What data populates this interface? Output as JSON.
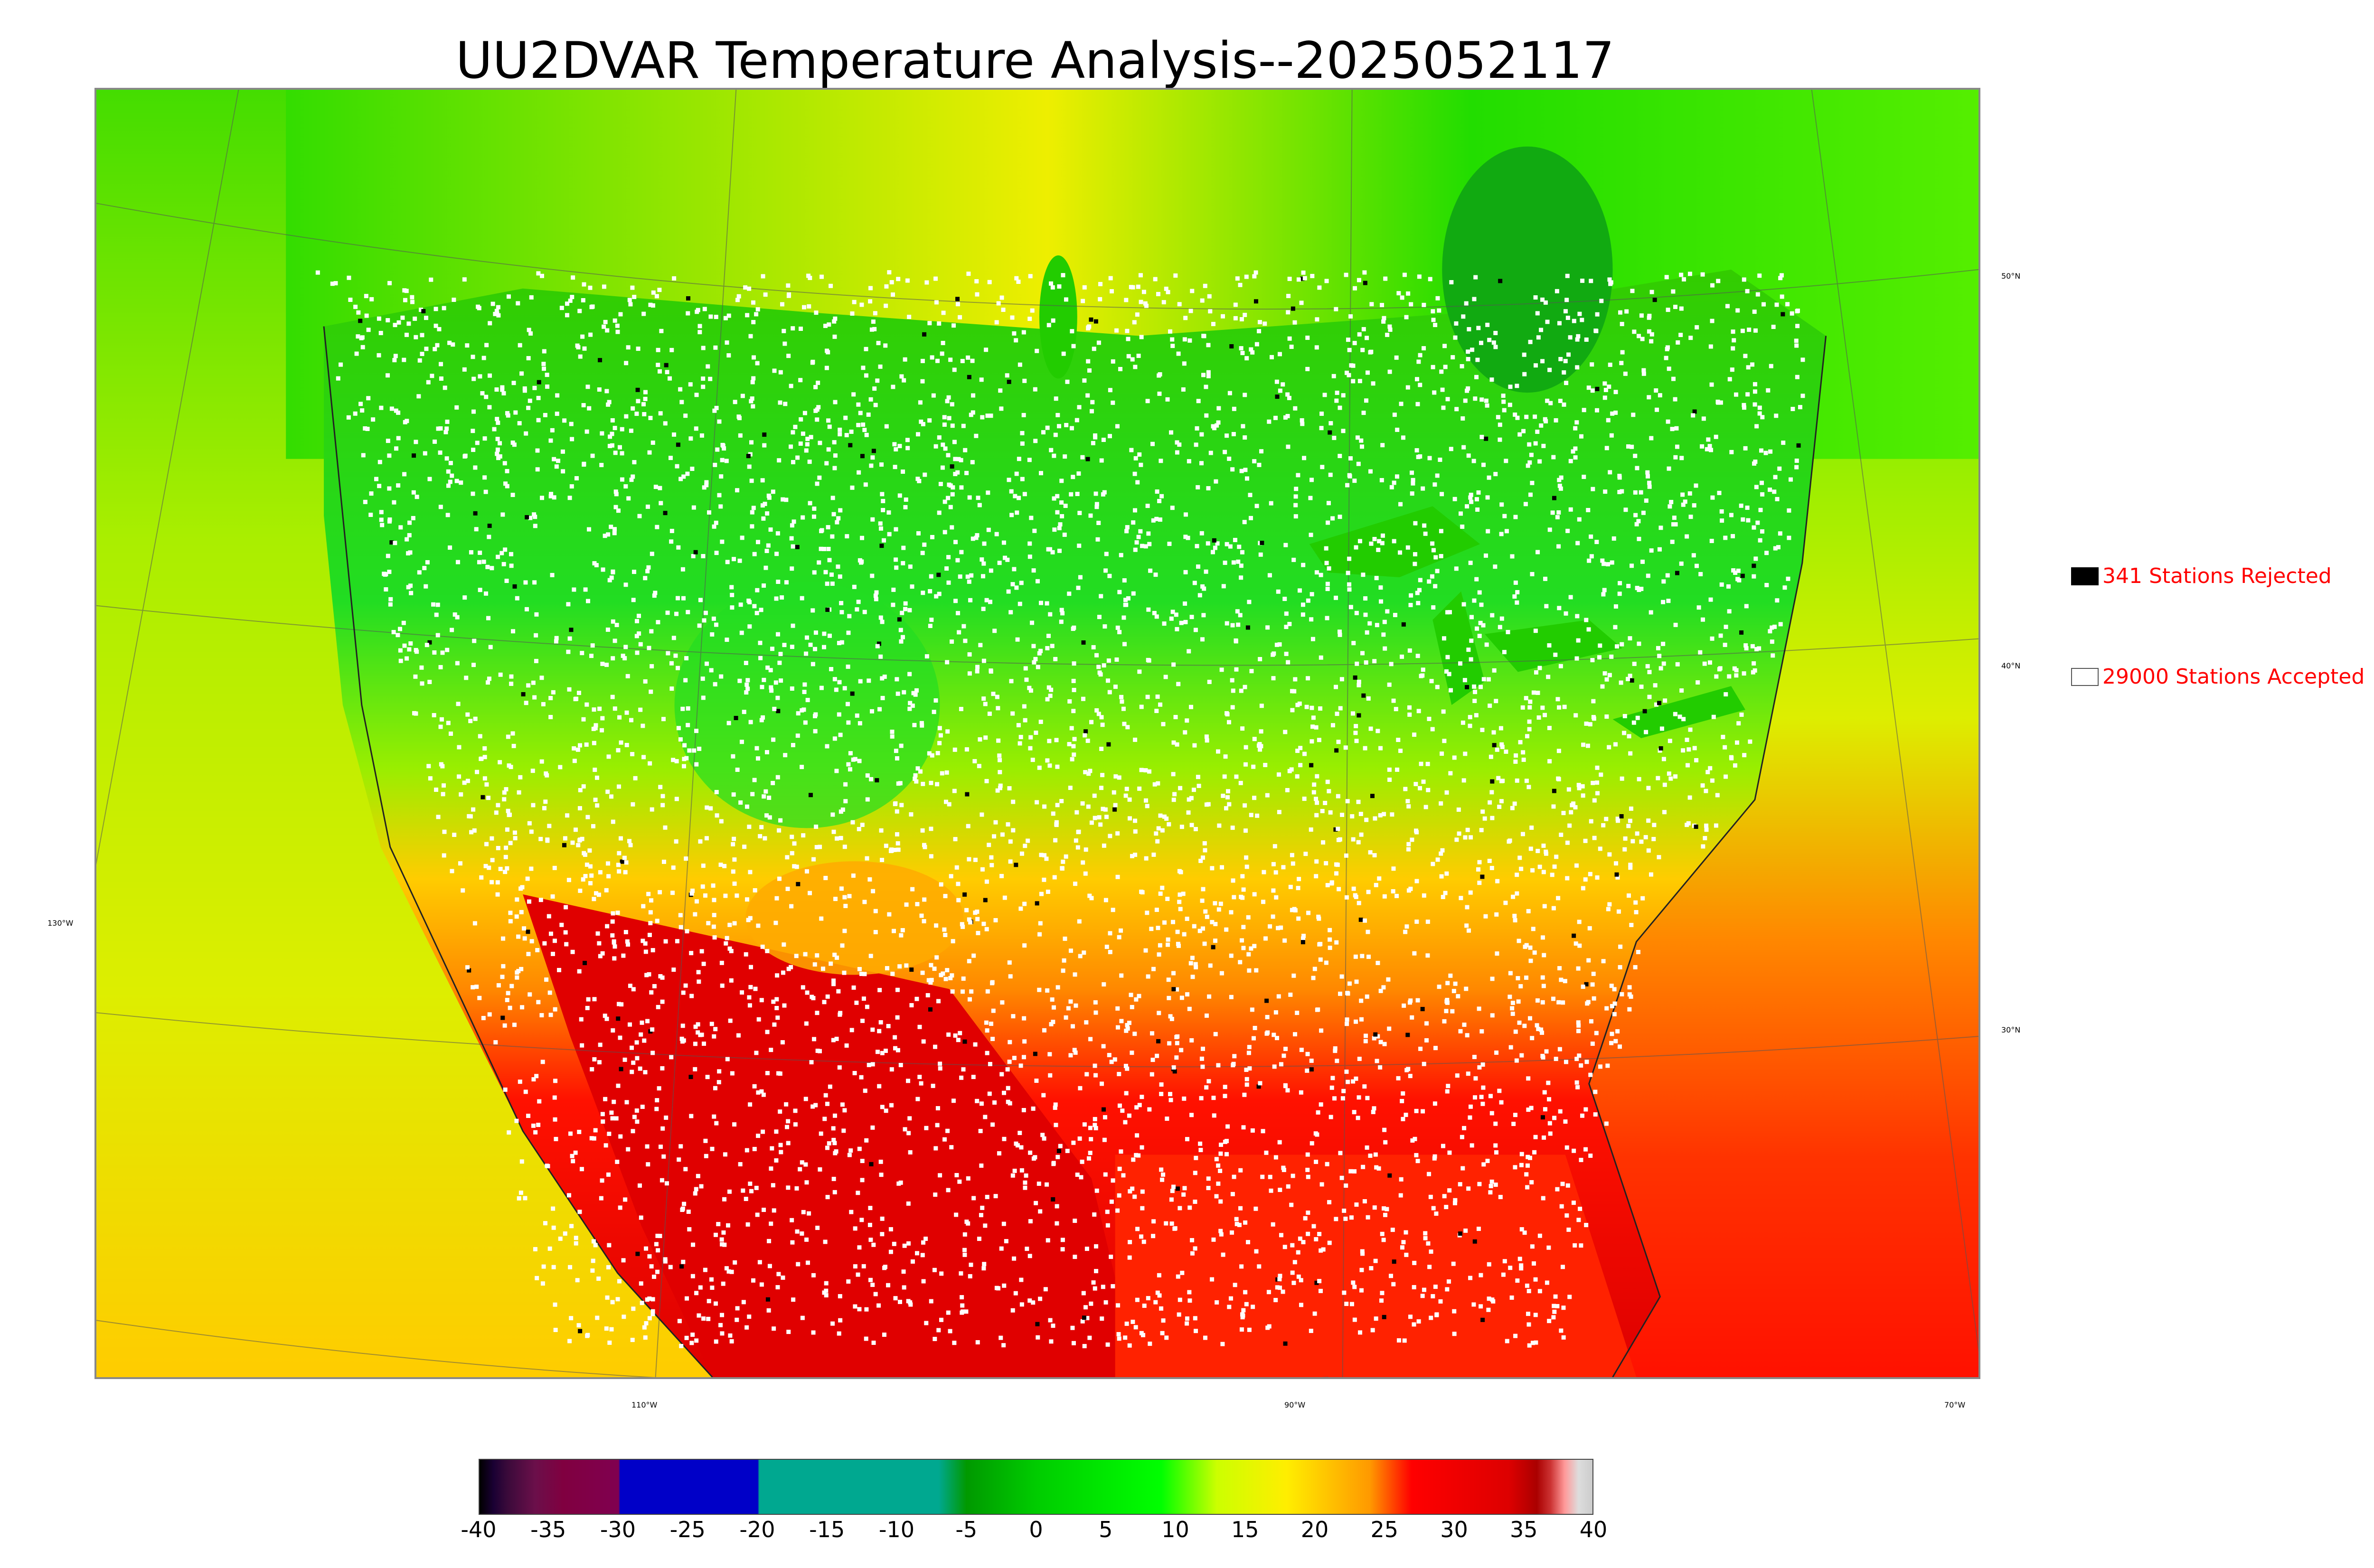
{
  "title": "UU2DVAR Temperature Analysis--2025052117",
  "map": {
    "lat_labels": [
      "50°N",
      "40°N",
      "30°N"
    ],
    "lon_labels": [
      "130°W",
      "110°W",
      "90°W",
      "70°W"
    ],
    "land_color": "#d4f000",
    "ocean_color": "#e6e600",
    "water_color": "#11bb11"
  },
  "legend": {
    "rejected": {
      "text": "341 Stations Rejected",
      "swatch_color": "#000000"
    },
    "accepted": {
      "text": "29000 Stations Accepted",
      "swatch_color": "#ffffff"
    }
  },
  "colorbar": {
    "ticks": [
      "-40",
      "-35",
      "-30",
      "-25",
      "-20",
      "-15",
      "-10",
      "-5",
      "0",
      "5",
      "10",
      "15",
      "20",
      "25",
      "30",
      "35",
      "40"
    ],
    "min": -40,
    "max": 40,
    "stops": [
      {
        "value": -40,
        "color": "#000000"
      },
      {
        "value": -39,
        "color": "#1a0033"
      },
      {
        "value": -38,
        "color": "#3a0a3a"
      },
      {
        "value": -36,
        "color": "#6b0f4a"
      },
      {
        "value": -34,
        "color": "#800040"
      },
      {
        "value": -30,
        "color": "#800050"
      },
      {
        "value": -29.9,
        "color": "#0000c8"
      },
      {
        "value": -20,
        "color": "#0000c8"
      },
      {
        "value": -19.9,
        "color": "#00a890"
      },
      {
        "value": -7,
        "color": "#00a890"
      },
      {
        "value": -5,
        "color": "#009900"
      },
      {
        "value": 0,
        "color": "#00cc00"
      },
      {
        "value": 9,
        "color": "#00ff00"
      },
      {
        "value": 13,
        "color": "#ccff00"
      },
      {
        "value": 18,
        "color": "#ffee00"
      },
      {
        "value": 24,
        "color": "#ff9900"
      },
      {
        "value": 27,
        "color": "#ff0000"
      },
      {
        "value": 34,
        "color": "#dd0000"
      },
      {
        "value": 36,
        "color": "#aa0000"
      },
      {
        "value": 37,
        "color": "#cc3333"
      },
      {
        "value": 38,
        "color": "#ff9999"
      },
      {
        "value": 39,
        "color": "#dddddd"
      },
      {
        "value": 40,
        "color": "#cccccc"
      }
    ]
  }
}
